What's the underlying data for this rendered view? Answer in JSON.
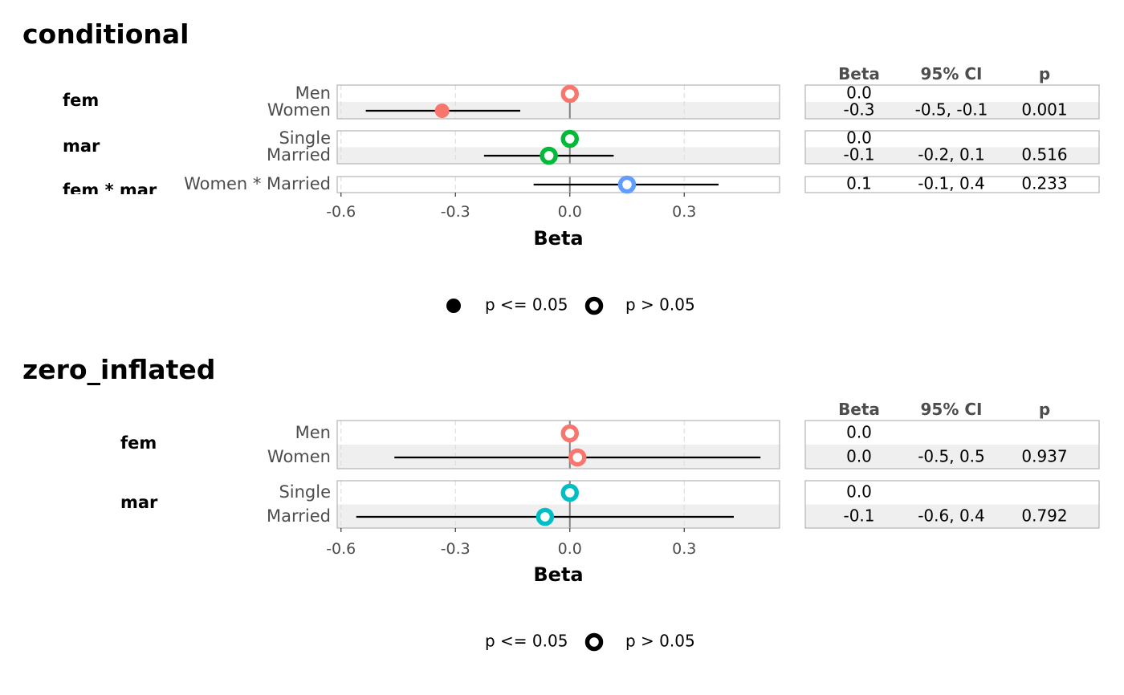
{
  "colors": {
    "fem": "#F8766D",
    "mar_conditional": "#00BA38",
    "interaction": "#619CFF",
    "mar_zero_inflated": "#00BFC4",
    "stripe": "#EBEBEB",
    "panel_border": "#B3B3B3",
    "zero_line": "#808080",
    "grid": "#DADADA"
  },
  "chart_data": [
    {
      "type": "scatter",
      "title": "conditional",
      "xlabel": "Beta",
      "xlim": [
        -0.61,
        0.55
      ],
      "xticks": [
        -0.6,
        -0.3,
        0.0,
        0.3
      ],
      "xtick_labels": [
        "-0.6",
        "-0.3",
        "0.0",
        "0.3"
      ],
      "table_headers": [
        "Beta",
        "95% CI",
        "p"
      ],
      "groups": [
        {
          "name": "fem",
          "color_key": "fem",
          "terms": [
            {
              "label": "Men",
              "estimate": 0.0,
              "ci_low": null,
              "ci_high": null,
              "significant": false,
              "beta": "0.0",
              "ci": "",
              "p": ""
            },
            {
              "label": "Women",
              "estimate": -0.335,
              "ci_low": -0.535,
              "ci_high": -0.13,
              "significant": true,
              "beta": "-0.3",
              "ci": "-0.5, -0.1",
              "p": "0.001"
            }
          ]
        },
        {
          "name": "mar",
          "color_key": "mar_conditional",
          "terms": [
            {
              "label": "Single",
              "estimate": 0.0,
              "ci_low": null,
              "ci_high": null,
              "significant": false,
              "beta": "0.0",
              "ci": "",
              "p": ""
            },
            {
              "label": "Married",
              "estimate": -0.055,
              "ci_low": -0.225,
              "ci_high": 0.115,
              "significant": false,
              "beta": "-0.1",
              "ci": "-0.2, 0.1",
              "p": "0.516"
            }
          ]
        },
        {
          "name": "fem * mar",
          "color_key": "interaction",
          "terms": [
            {
              "label": "Women * Married",
              "estimate": 0.15,
              "ci_low": -0.095,
              "ci_high": 0.39,
              "significant": false,
              "beta": "0.1",
              "ci": "-0.1, 0.4",
              "p": "0.233"
            }
          ]
        }
      ],
      "legend": [
        {
          "label": "p <= 0.05",
          "shape": "filled"
        },
        {
          "label": "p > 0.05",
          "shape": "hollow"
        }
      ]
    },
    {
      "type": "scatter",
      "title": "zero_inflated",
      "xlabel": "Beta",
      "xlim": [
        -0.61,
        0.55
      ],
      "xticks": [
        -0.6,
        -0.3,
        0.0,
        0.3
      ],
      "xtick_labels": [
        "-0.6",
        "-0.3",
        "0.0",
        "0.3"
      ],
      "table_headers": [
        "Beta",
        "95% CI",
        "p"
      ],
      "groups": [
        {
          "name": "fem",
          "color_key": "fem",
          "terms": [
            {
              "label": "Men",
              "estimate": 0.0,
              "ci_low": null,
              "ci_high": null,
              "significant": false,
              "beta": "0.0",
              "ci": "",
              "p": ""
            },
            {
              "label": "Women",
              "estimate": 0.02,
              "ci_low": -0.46,
              "ci_high": 0.5,
              "significant": false,
              "beta": "0.0",
              "ci": "-0.5, 0.5",
              "p": "0.937"
            }
          ]
        },
        {
          "name": "mar",
          "color_key": "mar_zero_inflated",
          "terms": [
            {
              "label": "Single",
              "estimate": 0.0,
              "ci_low": null,
              "ci_high": null,
              "significant": false,
              "beta": "0.0",
              "ci": "",
              "p": ""
            },
            {
              "label": "Married",
              "estimate": -0.065,
              "ci_low": -0.56,
              "ci_high": 0.43,
              "significant": false,
              "beta": "-0.1",
              "ci": "-0.6, 0.4",
              "p": "0.792"
            }
          ]
        }
      ],
      "legend": [
        {
          "label": "p <= 0.05",
          "shape": "none"
        },
        {
          "label": "p > 0.05",
          "shape": "hollow"
        }
      ]
    }
  ]
}
